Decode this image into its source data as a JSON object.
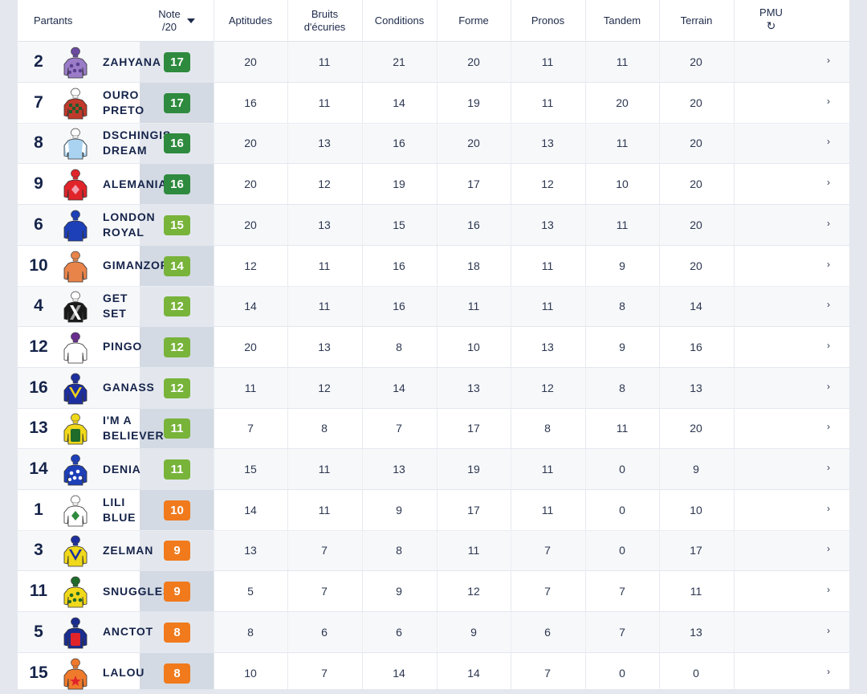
{
  "header": {
    "partants": "Partants",
    "note_line1": "Note",
    "note_line2": "/20",
    "aptitudes": "Aptitudes",
    "bruits_line1": "Bruits",
    "bruits_line2": "d'écuries",
    "conditions": "Conditions",
    "forme": "Forme",
    "pronos": "Pronos",
    "tandem": "Tandem",
    "terrain": "Terrain",
    "pmu": "PMU",
    "refresh_icon": "↻"
  },
  "chevron": "›",
  "colors": {
    "dark_green": "#2e8a3e",
    "light_green": "#78b33a",
    "orange": "#f07a1c",
    "note_column_bg": "#d3dae3"
  },
  "rows": [
    {
      "num": "2",
      "name": "ZAHYANA",
      "note": "17",
      "tier": "dark",
      "aptitudes": "20",
      "bruits": "11",
      "conditions": "21",
      "forme": "20",
      "pronos": "11",
      "tandem": "11",
      "terrain": "20",
      "silk": {
        "body": "#9a7cc8",
        "accent": "#5b3f8f",
        "cap": "#6b4aa0",
        "pattern": "dots"
      }
    },
    {
      "num": "7",
      "name": "OURO\nPRETO",
      "note": "17",
      "tier": "dark",
      "aptitudes": "16",
      "bruits": "11",
      "conditions": "14",
      "forme": "19",
      "pronos": "11",
      "tandem": "20",
      "terrain": "20",
      "silk": {
        "body": "#c0392b",
        "accent": "#1f5c2a",
        "cap": "#ffffff",
        "pattern": "check"
      }
    },
    {
      "num": "8",
      "name": "DSCHINGIS\nDREAM",
      "note": "16",
      "tier": "dark",
      "aptitudes": "20",
      "bruits": "13",
      "conditions": "16",
      "forme": "20",
      "pronos": "13",
      "tandem": "11",
      "terrain": "20",
      "silk": {
        "body": "#a9d3f0",
        "accent": "#ffffff",
        "cap": "#ffffff",
        "pattern": "sleeves"
      }
    },
    {
      "num": "9",
      "name": "ALEMANIA",
      "note": "16",
      "tier": "dark",
      "aptitudes": "20",
      "bruits": "12",
      "conditions": "19",
      "forme": "17",
      "pronos": "12",
      "tandem": "10",
      "terrain": "20",
      "silk": {
        "body": "#e0242a",
        "accent": "#f2a0b0",
        "cap": "#e0242a",
        "pattern": "diamond"
      }
    },
    {
      "num": "6",
      "name": "LONDON\nROYAL",
      "note": "15",
      "tier": "light",
      "aptitudes": "20",
      "bruits": "13",
      "conditions": "15",
      "forme": "16",
      "pronos": "13",
      "tandem": "11",
      "terrain": "20",
      "silk": {
        "body": "#1d3fb8",
        "accent": "#ffffff",
        "cap": "#1d3fb8",
        "pattern": "plain"
      }
    },
    {
      "num": "10",
      "name": "GIMANZOR",
      "note": "14",
      "tier": "light",
      "aptitudes": "12",
      "bruits": "11",
      "conditions": "16",
      "forme": "18",
      "pronos": "11",
      "tandem": "9",
      "terrain": "20",
      "silk": {
        "body": "#e8844a",
        "accent": "#c96530",
        "cap": "#e8844a",
        "pattern": "plain"
      }
    },
    {
      "num": "4",
      "name": "GET\nSET",
      "note": "12",
      "tier": "light",
      "aptitudes": "14",
      "bruits": "11",
      "conditions": "16",
      "forme": "11",
      "pronos": "11",
      "tandem": "8",
      "terrain": "14",
      "silk": {
        "body": "#1a1a1a",
        "accent": "#ffffff",
        "cap": "#ffffff",
        "pattern": "sash"
      }
    },
    {
      "num": "12",
      "name": "PINGO",
      "note": "12",
      "tier": "light",
      "aptitudes": "20",
      "bruits": "13",
      "conditions": "8",
      "forme": "10",
      "pronos": "13",
      "tandem": "9",
      "terrain": "16",
      "silk": {
        "body": "#ffffff",
        "accent": "#6a2d8f",
        "cap": "#6a2d8f",
        "pattern": "plain"
      }
    },
    {
      "num": "16",
      "name": "GANASS",
      "note": "12",
      "tier": "light",
      "aptitudes": "11",
      "bruits": "12",
      "conditions": "14",
      "forme": "13",
      "pronos": "12",
      "tandem": "8",
      "terrain": "13",
      "silk": {
        "body": "#1d2f9e",
        "accent": "#f2d21a",
        "cap": "#1d2f9e",
        "pattern": "chevron"
      }
    },
    {
      "num": "13",
      "name": "I'M A\nBELIEVER",
      "note": "11",
      "tier": "light",
      "aptitudes": "7",
      "bruits": "8",
      "conditions": "7",
      "forme": "17",
      "pronos": "8",
      "tandem": "11",
      "terrain": "20",
      "silk": {
        "body": "#f0d81a",
        "accent": "#1f6b2a",
        "cap": "#f0d81a",
        "pattern": "vest"
      }
    },
    {
      "num": "14",
      "name": "DENIA",
      "note": "11",
      "tier": "light",
      "aptitudes": "15",
      "bruits": "11",
      "conditions": "13",
      "forme": "19",
      "pronos": "11",
      "tandem": "0",
      "terrain": "9",
      "silk": {
        "body": "#1d3fb8",
        "accent": "#ffffff",
        "cap": "#1d3fb8",
        "pattern": "dots"
      }
    },
    {
      "num": "1",
      "name": "LILI\nBLUE",
      "note": "10",
      "tier": "orange",
      "aptitudes": "14",
      "bruits": "11",
      "conditions": "9",
      "forme": "17",
      "pronos": "11",
      "tandem": "0",
      "terrain": "10",
      "silk": {
        "body": "#ffffff",
        "accent": "#2e8a3e",
        "cap": "#ffffff",
        "pattern": "diamond"
      }
    },
    {
      "num": "3",
      "name": "ZELMAN",
      "note": "9",
      "tier": "orange",
      "aptitudes": "13",
      "bruits": "7",
      "conditions": "8",
      "forme": "11",
      "pronos": "7",
      "tandem": "0",
      "terrain": "17",
      "silk": {
        "body": "#f0d81a",
        "accent": "#1d2f9e",
        "cap": "#1d2f9e",
        "pattern": "chevron"
      }
    },
    {
      "num": "11",
      "name": "SNUGGLES",
      "note": "9",
      "tier": "orange",
      "aptitudes": "5",
      "bruits": "7",
      "conditions": "9",
      "forme": "12",
      "pronos": "7",
      "tandem": "7",
      "terrain": "11",
      "silk": {
        "body": "#f0d81a",
        "accent": "#1f6b2a",
        "cap": "#1f6b2a",
        "pattern": "dots"
      }
    },
    {
      "num": "5",
      "name": "ANCTOT",
      "note": "8",
      "tier": "orange",
      "aptitudes": "8",
      "bruits": "6",
      "conditions": "6",
      "forme": "9",
      "pronos": "6",
      "tandem": "7",
      "terrain": "13",
      "silk": {
        "body": "#1a2d8f",
        "accent": "#e0242a",
        "cap": "#1a2d8f",
        "pattern": "vest"
      }
    },
    {
      "num": "15",
      "name": "LALOU",
      "note": "8",
      "tier": "orange",
      "aptitudes": "10",
      "bruits": "7",
      "conditions": "14",
      "forme": "14",
      "pronos": "7",
      "tandem": "0",
      "terrain": "0",
      "silk": {
        "body": "#f07a2c",
        "accent": "#f2d21a",
        "cap": "#f07a2c",
        "pattern": "star"
      }
    }
  ]
}
